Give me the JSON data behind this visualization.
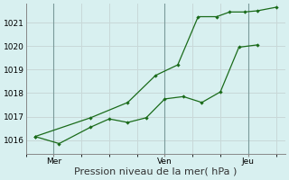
{
  "xlabel": "Pression niveau de la mer( hPa )",
  "bg_color": "#d8f0f0",
  "grid_color": "#c8d8d8",
  "line_color": "#1a6b1a",
  "ylim": [
    1015.4,
    1021.8
  ],
  "yticks": [
    1016,
    1017,
    1018,
    1019,
    1020,
    1021
  ],
  "xlim": [
    0,
    14
  ],
  "series1_x": [
    0.5,
    1.8,
    3.5,
    4.5,
    5.5,
    6.5,
    7.5,
    8.5,
    9.5,
    10.5,
    11.5,
    12.5
  ],
  "series1_y": [
    1016.15,
    1015.85,
    1016.55,
    1016.9,
    1016.75,
    1016.95,
    1017.75,
    1017.85,
    1017.6,
    1018.05,
    1019.95,
    1020.05
  ],
  "series2_x": [
    0.5,
    3.5,
    5.5,
    7.0,
    8.2,
    9.3,
    10.3,
    11.0,
    11.8,
    12.5,
    13.5
  ],
  "series2_y": [
    1016.15,
    1016.95,
    1017.6,
    1018.75,
    1019.2,
    1021.25,
    1021.25,
    1021.45,
    1021.45,
    1021.5,
    1021.65
  ],
  "vlines_x": [
    1.5,
    7.5,
    12.0
  ],
  "day_labels": [
    [
      "Mer",
      1.5
    ],
    [
      "Ven",
      7.5
    ],
    [
      "Jeu",
      12.0
    ]
  ],
  "tick_fontsize": 6.5,
  "label_fontsize": 8,
  "marker_size": 2.2,
  "line_width": 0.9
}
